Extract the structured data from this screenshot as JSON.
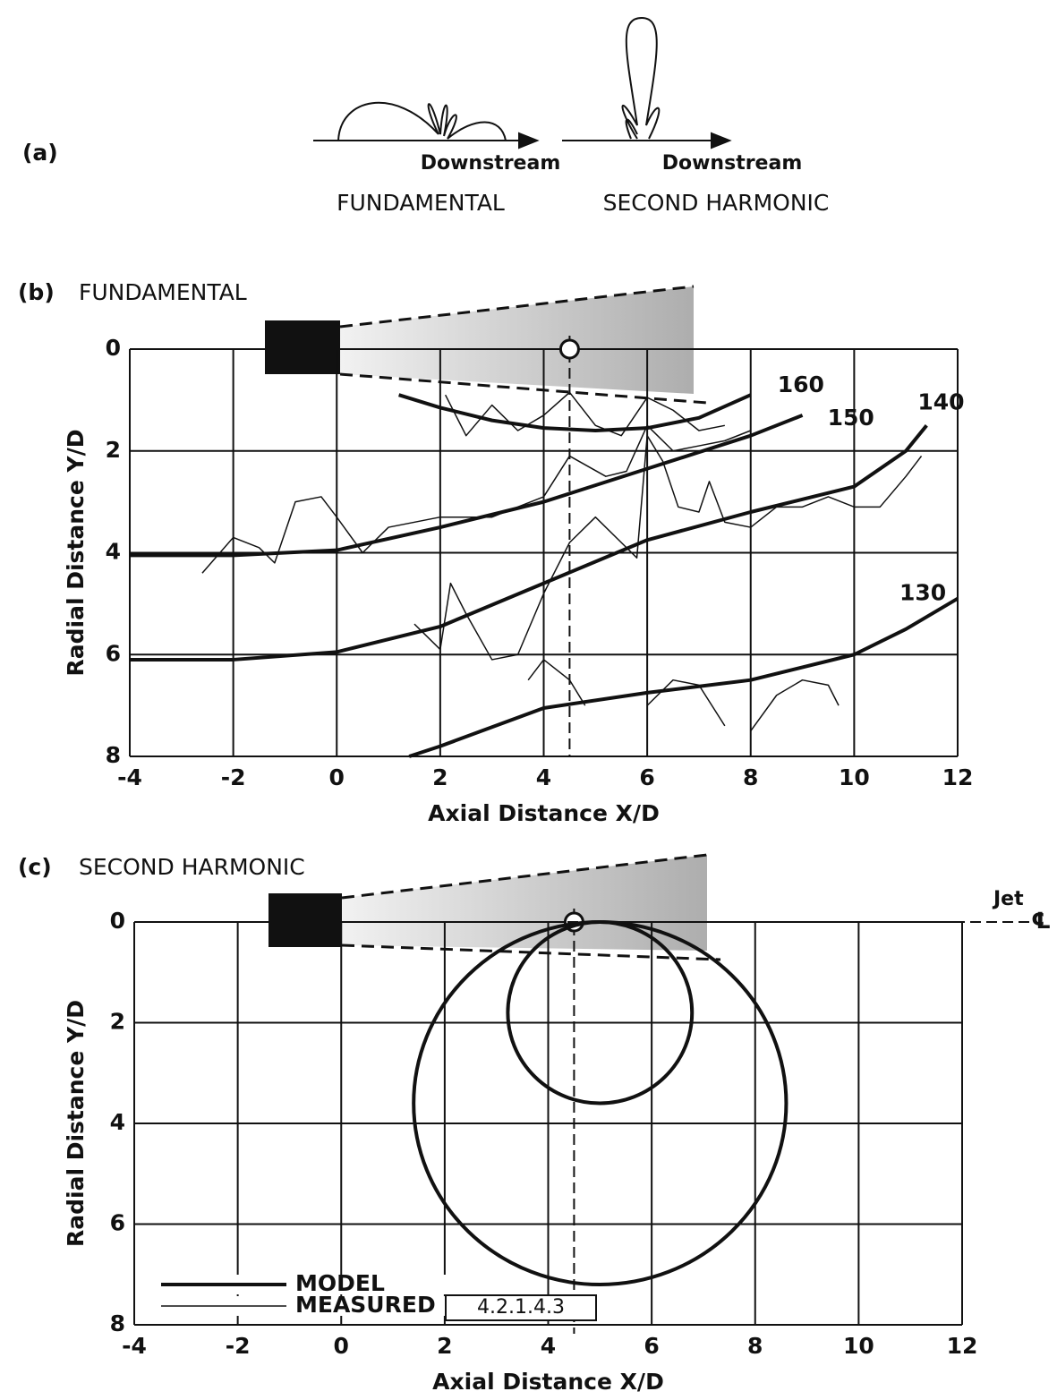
{
  "panel_a": {
    "label": "(a)",
    "captions": [
      "Downstream",
      "Downstream"
    ],
    "names": [
      "FUNDAMENTAL",
      "SECOND HARMONIC"
    ]
  },
  "chart_data": [
    {
      "type": "line",
      "label": "(b)",
      "title": "FUNDAMENTAL",
      "x_label": "Axial Distance X/D",
      "y_label": "Radial Distance Y/D",
      "xlim": [
        -4,
        12
      ],
      "ylim": [
        8,
        0
      ],
      "xticks": [
        -4,
        -2,
        0,
        2,
        4,
        6,
        8,
        10,
        12
      ],
      "yticks": [
        0,
        2,
        4,
        6,
        8
      ],
      "grid": true,
      "color": "#111",
      "series": [
        {
          "name": "160",
          "line_width": 4,
          "x": [
            1.2,
            2,
            3,
            4,
            5,
            6,
            7,
            8
          ],
          "values": [
            0.9,
            1.15,
            1.4,
            1.55,
            1.6,
            1.55,
            1.35,
            0.9
          ]
        },
        {
          "name": "150",
          "line_width": 4,
          "x": [
            -4,
            -2,
            0,
            2,
            4,
            6,
            8,
            9
          ],
          "values": [
            4.05,
            4.05,
            3.95,
            3.5,
            3.0,
            2.35,
            1.7,
            1.3
          ]
        },
        {
          "name": "140",
          "line_width": 4,
          "x": [
            -4,
            -2,
            0,
            2,
            4,
            6,
            8,
            10,
            11,
            11.4
          ],
          "values": [
            6.1,
            6.1,
            5.95,
            5.45,
            4.6,
            3.75,
            3.2,
            2.7,
            2.0,
            1.5
          ]
        },
        {
          "name": "130",
          "line_width": 4,
          "x": [
            1.4,
            2,
            4,
            6,
            8,
            10,
            11,
            12
          ],
          "values": [
            8.0,
            7.8,
            7.05,
            6.75,
            6.5,
            6.0,
            5.5,
            4.9
          ]
        },
        {
          "line_width": 1.5,
          "x": [
            2.1,
            2.5,
            3,
            3.5,
            4,
            4.5,
            5,
            5.5,
            6,
            6.5,
            7,
            7.5
          ],
          "values": [
            0.9,
            1.7,
            1.1,
            1.6,
            1.3,
            0.85,
            1.5,
            1.7,
            0.95,
            1.2,
            1.6,
            1.5
          ]
        },
        {
          "line_width": 1.5,
          "x": [
            -2.6,
            -2,
            -1.5,
            -1.2,
            -0.8,
            -0.3,
            0,
            0.5,
            1,
            2,
            3,
            4,
            4.5,
            5.2,
            5.6,
            6,
            6.5,
            7,
            7.5,
            8
          ],
          "values": [
            4.4,
            3.7,
            3.9,
            4.2,
            3.0,
            2.9,
            3.3,
            4.0,
            3.5,
            3.3,
            3.3,
            2.9,
            2.1,
            2.5,
            2.4,
            1.5,
            2.0,
            1.9,
            1.8,
            1.6
          ]
        },
        {
          "line_width": 1.5,
          "x": [
            1.5,
            2,
            2.2,
            2.5,
            3,
            3.5,
            4,
            4.5,
            5,
            5.5,
            5.8,
            6,
            6.3,
            6.6,
            7,
            7.2,
            7.5,
            8,
            8.5,
            9,
            9.5,
            10,
            10.5,
            11,
            11.3
          ],
          "values": [
            5.4,
            5.9,
            4.6,
            5.2,
            6.1,
            6.0,
            4.8,
            3.8,
            3.3,
            3.8,
            4.1,
            1.7,
            2.2,
            3.1,
            3.2,
            2.6,
            3.4,
            3.5,
            3.1,
            3.1,
            2.9,
            3.1,
            3.1,
            2.5,
            2.1
          ]
        },
        {
          "line_width": 1.5,
          "x": [
            3.7,
            4,
            4.5,
            4.8,
            5.5,
            6,
            6.5,
            7,
            7.5,
            7.8,
            8,
            8.5,
            9,
            9.5,
            9.7
          ],
          "values": [
            6.5,
            6.1,
            6.5,
            7.0,
            null,
            7.0,
            6.5,
            6.6,
            7.4,
            null,
            7.5,
            6.8,
            6.5,
            6.6,
            7.0
          ]
        }
      ]
    },
    {
      "type": "contour",
      "label": "(c)",
      "title": "SECOND HARMONIC",
      "x_label": "Axial Distance X/D",
      "y_label": "Radial Distance Y/D",
      "xlim": [
        -4,
        12
      ],
      "ylim": [
        8,
        0
      ],
      "xticks": [
        -4,
        -2,
        0,
        2,
        4,
        6,
        8,
        10,
        12
      ],
      "yticks": [
        0,
        2,
        4,
        6,
        8
      ],
      "grid": true,
      "color": "#111",
      "series": [
        {
          "line_width": 4,
          "center_x": 5.0,
          "center_y": 3.6,
          "radius_x": 3.6,
          "radius_y": 3.6
        },
        {
          "line_width": 4,
          "center_x": 5.0,
          "center_y": 1.8,
          "radius_x": 1.78,
          "radius_y": 1.8
        }
      ],
      "legend": [
        {
          "label": "MODEL",
          "line_width": 4
        },
        {
          "label": "MEASURED",
          "line_width": 1.5
        }
      ],
      "legend_note": "4.2.1.4.3",
      "annotations": [
        "Jet",
        "℄"
      ]
    }
  ]
}
